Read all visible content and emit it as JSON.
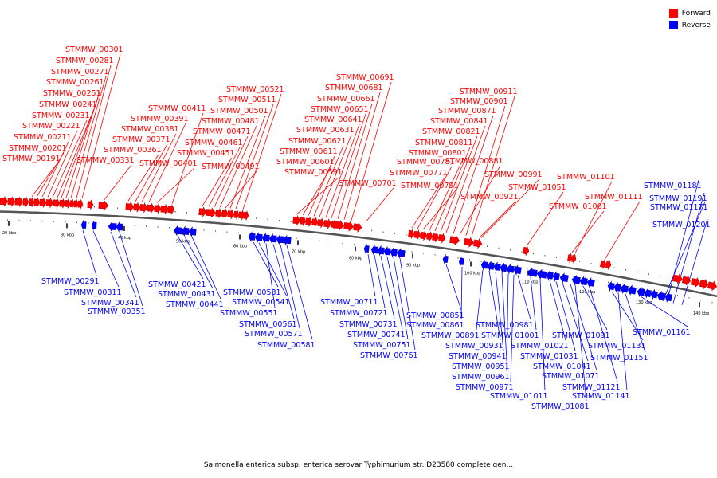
{
  "legend": {
    "forward_label": "Forward",
    "reverse_label": "Reverse",
    "forward_color": "#ff0000",
    "reverse_color": "#0000ff"
  },
  "caption": "Salmonella enterica subsp. enterica serovar Typhimurium str. D23580 complete gen...",
  "axis": {
    "start_kbp": 14,
    "end_kbp": 147,
    "curve_shape": "curved",
    "tick_labels": [
      "20 kbp",
      "30 kbp",
      "40 kbp",
      "50 kbp",
      "60 kbp",
      "70 kbp",
      "80 kbp",
      "90 kbp",
      "100 kbp",
      "110 kbp",
      "120 kbp",
      "130 kbp",
      "140 kbp"
    ]
  },
  "forward_labels": [
    "STMMW_00191",
    "STMMW_00201",
    "STMMW_00211",
    "STMMW_00221",
    "STMMW_00231",
    "STMMW_00241",
    "STMMW_00251",
    "STMMW_00261",
    "STMMW_00271",
    "STMMW_00281",
    "STMMW_00301",
    "STMMW_00331",
    "STMMW_00361",
    "STMMW_00371",
    "STMMW_00381",
    "STMMW_00391",
    "STMMW_00401",
    "STMMW_00411",
    "STMMW_00451",
    "STMMW_00461",
    "STMMW_00471",
    "STMMW_00481",
    "STMMW_00491",
    "STMMW_00501",
    "STMMW_00511",
    "STMMW_00521",
    "STMMW_00591",
    "STMMW_00601",
    "STMMW_00611",
    "STMMW_00621",
    "STMMW_00631",
    "STMMW_00641",
    "STMMW_00651",
    "STMMW_00661",
    "STMMW_00681",
    "STMMW_00691",
    "STMMW_00701",
    "STMMW_00771",
    "STMMW_00781",
    "STMMW_00791",
    "STMMW_00801",
    "STMMW_00811",
    "STMMW_00821",
    "STMMW_00841",
    "STMMW_00871",
    "STMMW_00881",
    "STMMW_00901",
    "STMMW_00911",
    "STMMW_00921",
    "STMMW_00991",
    "STMMW_01051",
    "STMMW_01061",
    "STMMW_01101",
    "STMMW_01111"
  ],
  "reverse_labels": [
    "STMMW_00291",
    "STMMW_00311",
    "STMMW_00341",
    "STMMW_00351",
    "STMMW_00421",
    "STMMW_00431",
    "STMMW_00441",
    "STMMW_00531",
    "STMMW_00541",
    "STMMW_00551",
    "STMMW_00561",
    "STMMW_00571",
    "STMMW_00581",
    "STMMW_00711",
    "STMMW_00721",
    "STMMW_00731",
    "STMMW_00741",
    "STMMW_00751",
    "STMMW_00761",
    "STMMW_00851",
    "STMMW_00861",
    "STMMW_00891",
    "STMMW_00931",
    "STMMW_00941",
    "STMMW_00951",
    "STMMW_00961",
    "STMMW_00971",
    "STMMW_00981",
    "STMMW_01001",
    "STMMW_01011",
    "STMMW_01021",
    "STMMW_01031",
    "STMMW_01041",
    "STMMW_01071",
    "STMMW_01081",
    "STMMW_01091",
    "STMMW_01121",
    "STMMW_01131",
    "STMMW_01141",
    "STMMW_01151",
    "STMMW_01161",
    "STMMW_01171",
    "STMMW_01181",
    "STMMW_01191",
    "STMMW_01201"
  ]
}
